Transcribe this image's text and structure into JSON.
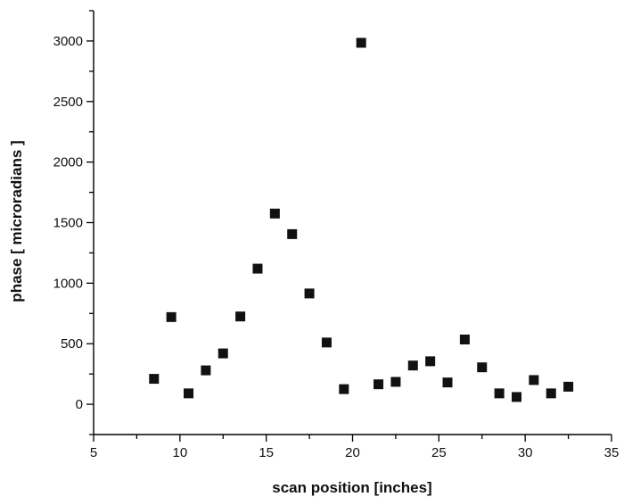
{
  "chart_data": {
    "type": "scatter",
    "xlabel": "scan position [inches]",
    "ylabel": "phase [ microradians ]",
    "xlim": [
      5,
      35
    ],
    "ylim": [
      -250,
      3250
    ],
    "x_ticks": [
      "5",
      "10",
      "15",
      "20",
      "25",
      "30",
      "35"
    ],
    "y_ticks": [
      "0",
      "500",
      "1000",
      "1500",
      "2000",
      "2500",
      "3000"
    ],
    "marker": "square",
    "marker_color": "#111111",
    "grid": false,
    "series": [
      {
        "points": [
          {
            "x": 8.5,
            "y": 210
          },
          {
            "x": 9.5,
            "y": 720
          },
          {
            "x": 10.5,
            "y": 90
          },
          {
            "x": 11.5,
            "y": 280
          },
          {
            "x": 12.5,
            "y": 420
          },
          {
            "x": 13.5,
            "y": 725
          },
          {
            "x": 14.5,
            "y": 1120
          },
          {
            "x": 15.5,
            "y": 1575
          },
          {
            "x": 16.5,
            "y": 1405
          },
          {
            "x": 17.5,
            "y": 915
          },
          {
            "x": 18.5,
            "y": 510
          },
          {
            "x": 19.5,
            "y": 125
          },
          {
            "x": 20.5,
            "y": 2985
          },
          {
            "x": 21.5,
            "y": 165
          },
          {
            "x": 22.5,
            "y": 185
          },
          {
            "x": 23.5,
            "y": 320
          },
          {
            "x": 24.5,
            "y": 355
          },
          {
            "x": 25.5,
            "y": 180
          },
          {
            "x": 26.5,
            "y": 535
          },
          {
            "x": 27.5,
            "y": 305
          },
          {
            "x": 28.5,
            "y": 90
          },
          {
            "x": 29.5,
            "y": 60
          },
          {
            "x": 30.5,
            "y": 200
          },
          {
            "x": 31.5,
            "y": 90
          },
          {
            "x": 32.5,
            "y": 145
          }
        ]
      }
    ]
  }
}
